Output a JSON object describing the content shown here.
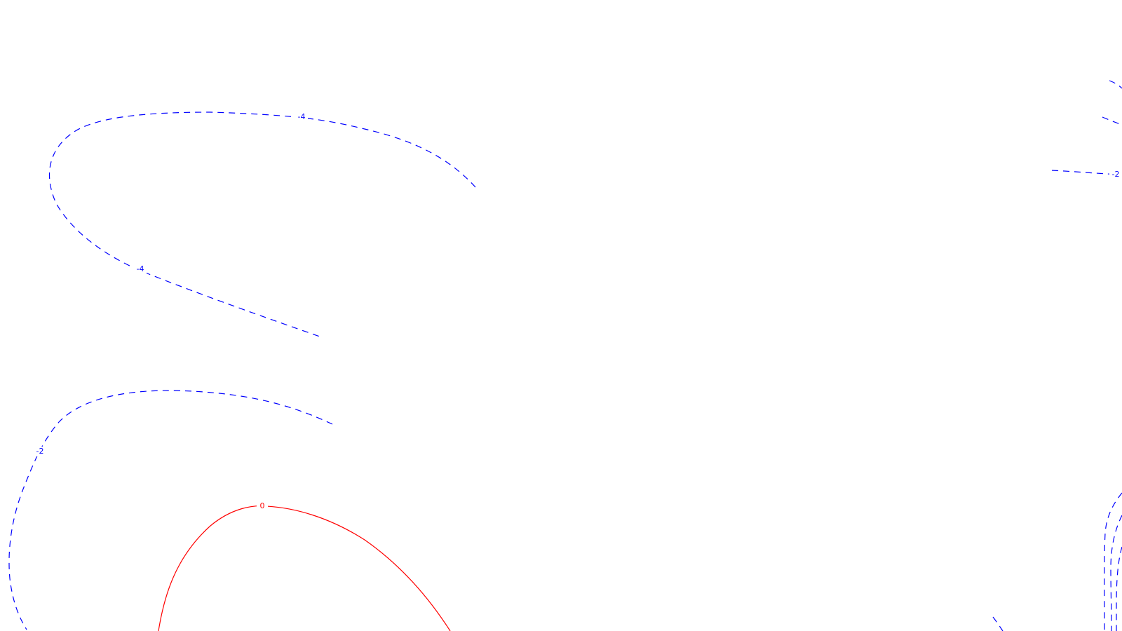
{
  "map": {
    "background": "#ffffff",
    "negative_color": "#0000ff",
    "zero_color": "#ff0000",
    "contours": [
      {
        "id": "contour-neg4-upper-left",
        "value": -4,
        "style": "dashed",
        "color": "#0000ff",
        "labels": [
          "-4",
          "-4"
        ]
      },
      {
        "id": "contour-neg2-left",
        "value": -2,
        "style": "dashed",
        "color": "#0000ff",
        "labels": [
          "-2"
        ]
      },
      {
        "id": "contour-zero",
        "value": 0,
        "style": "solid",
        "color": "#ff0000",
        "labels": [
          "0"
        ]
      },
      {
        "id": "contour-neg2-upper-right",
        "value": -2,
        "style": "dashed",
        "color": "#0000ff",
        "labels": [
          "-2"
        ]
      },
      {
        "id": "contour-neg-upper-right-edge",
        "value": null,
        "style": "dashed",
        "color": "#0000ff",
        "labels": []
      },
      {
        "id": "contour-neg-lower-right-edge",
        "value": null,
        "style": "dashed",
        "color": "#0000ff",
        "labels": []
      }
    ]
  }
}
